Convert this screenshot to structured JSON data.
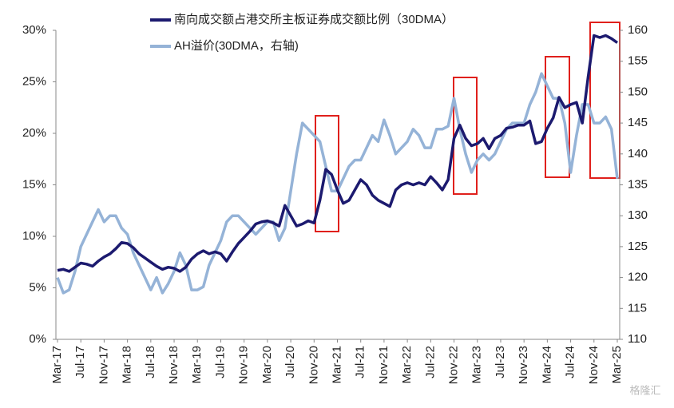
{
  "chart_data": {
    "type": "line",
    "categories": [
      "Mar-17",
      null,
      null,
      null,
      "Jul-17",
      null,
      null,
      null,
      "Nov-17",
      null,
      null,
      null,
      "Mar-18",
      null,
      null,
      null,
      "Jul-18",
      null,
      null,
      null,
      "Nov-18",
      null,
      null,
      null,
      "Mar-19",
      null,
      null,
      null,
      "Jul-19",
      null,
      null,
      null,
      "Nov-19",
      null,
      null,
      null,
      "Mar-20",
      null,
      null,
      null,
      "Jul-20",
      null,
      null,
      null,
      "Nov-20",
      null,
      null,
      null,
      "Mar-21",
      null,
      null,
      null,
      "Jul-21",
      null,
      null,
      null,
      "Nov-21",
      null,
      null,
      null,
      "Mar-22",
      null,
      null,
      null,
      "Jul-22",
      null,
      null,
      null,
      "Nov-22",
      null,
      null,
      null,
      "Mar-23",
      null,
      null,
      null,
      "Jul-23",
      null,
      null,
      null,
      "Nov-23",
      null,
      null,
      null,
      "Mar-24",
      null,
      null,
      null,
      "Jul-24",
      null,
      null,
      null,
      "Nov-24",
      null,
      null,
      null,
      "Mar-25"
    ],
    "series": [
      {
        "name": "南向成交额占港交所主板证券成交额比例（30DMA）",
        "color": "#1c1a6f",
        "axis": "y",
        "values": [
          6.7,
          6.8,
          6.6,
          7.0,
          7.4,
          7.3,
          7.1,
          7.6,
          8.0,
          8.3,
          8.8,
          9.4,
          9.3,
          8.9,
          8.3,
          7.9,
          7.5,
          7.1,
          6.8,
          7.0,
          6.9,
          6.6,
          7.0,
          7.8,
          8.3,
          8.6,
          8.3,
          8.5,
          8.3,
          7.6,
          8.5,
          9.3,
          9.9,
          10.5,
          11.2,
          11.4,
          11.5,
          11.3,
          11.0,
          13.0,
          12.0,
          11.0,
          11.2,
          11.5,
          11.3,
          13.5,
          16.5,
          16.0,
          14.5,
          13.2,
          13.5,
          14.5,
          15.5,
          15.0,
          14.0,
          13.5,
          13.2,
          12.9,
          14.5,
          15.0,
          15.2,
          15.0,
          15.2,
          15.0,
          15.8,
          15.2,
          14.5,
          15.5,
          19.5,
          20.8,
          19.5,
          18.8,
          19.0,
          19.5,
          18.5,
          19.5,
          19.8,
          20.5,
          20.6,
          20.8,
          20.8,
          21.2,
          19.0,
          19.2,
          20.5,
          21.5,
          23.5,
          22.5,
          22.8,
          23.0,
          21.0,
          25.5,
          29.5,
          29.3,
          29.5,
          29.2,
          28.8
        ]
      },
      {
        "name": "AH溢价(30DMA，右轴)",
        "color": "#95b3d7",
        "axis": "y2",
        "values": [
          120,
          117.5,
          118,
          121,
          125,
          127,
          129,
          131,
          129,
          130,
          130,
          128,
          127,
          124,
          122,
          120,
          118,
          120,
          117.5,
          119,
          121,
          124,
          122,
          118,
          118,
          118.5,
          122,
          124,
          126,
          129,
          130,
          130,
          129,
          128,
          127,
          128,
          129,
          129,
          126,
          128,
          134,
          140,
          145,
          144,
          143,
          142,
          138,
          134,
          134,
          136,
          138,
          139,
          139,
          141,
          143,
          142,
          145.5,
          143,
          140,
          141,
          142,
          144,
          143,
          141,
          141,
          144,
          144,
          144.5,
          149,
          144,
          140,
          137,
          139,
          140,
          139,
          140,
          142,
          144,
          145,
          145,
          145,
          148,
          150,
          153,
          151,
          149,
          149,
          145,
          137,
          143,
          148,
          148,
          145,
          145,
          146,
          144,
          136
        ]
      }
    ],
    "ylim": [
      0,
      30
    ],
    "yticks": [
      {
        "value": 0,
        "label": "0%"
      },
      {
        "value": 5,
        "label": "5%"
      },
      {
        "value": 10,
        "label": "10%"
      },
      {
        "value": 15,
        "label": "15%"
      },
      {
        "value": 20,
        "label": "20%"
      },
      {
        "value": 25,
        "label": "25%"
      },
      {
        "value": 30,
        "label": "30%"
      }
    ],
    "y2lim": [
      110,
      160
    ],
    "y2ticks": [
      110,
      115,
      120,
      125,
      130,
      135,
      140,
      145,
      150,
      155,
      160
    ],
    "watermark": "格隆汇"
  }
}
